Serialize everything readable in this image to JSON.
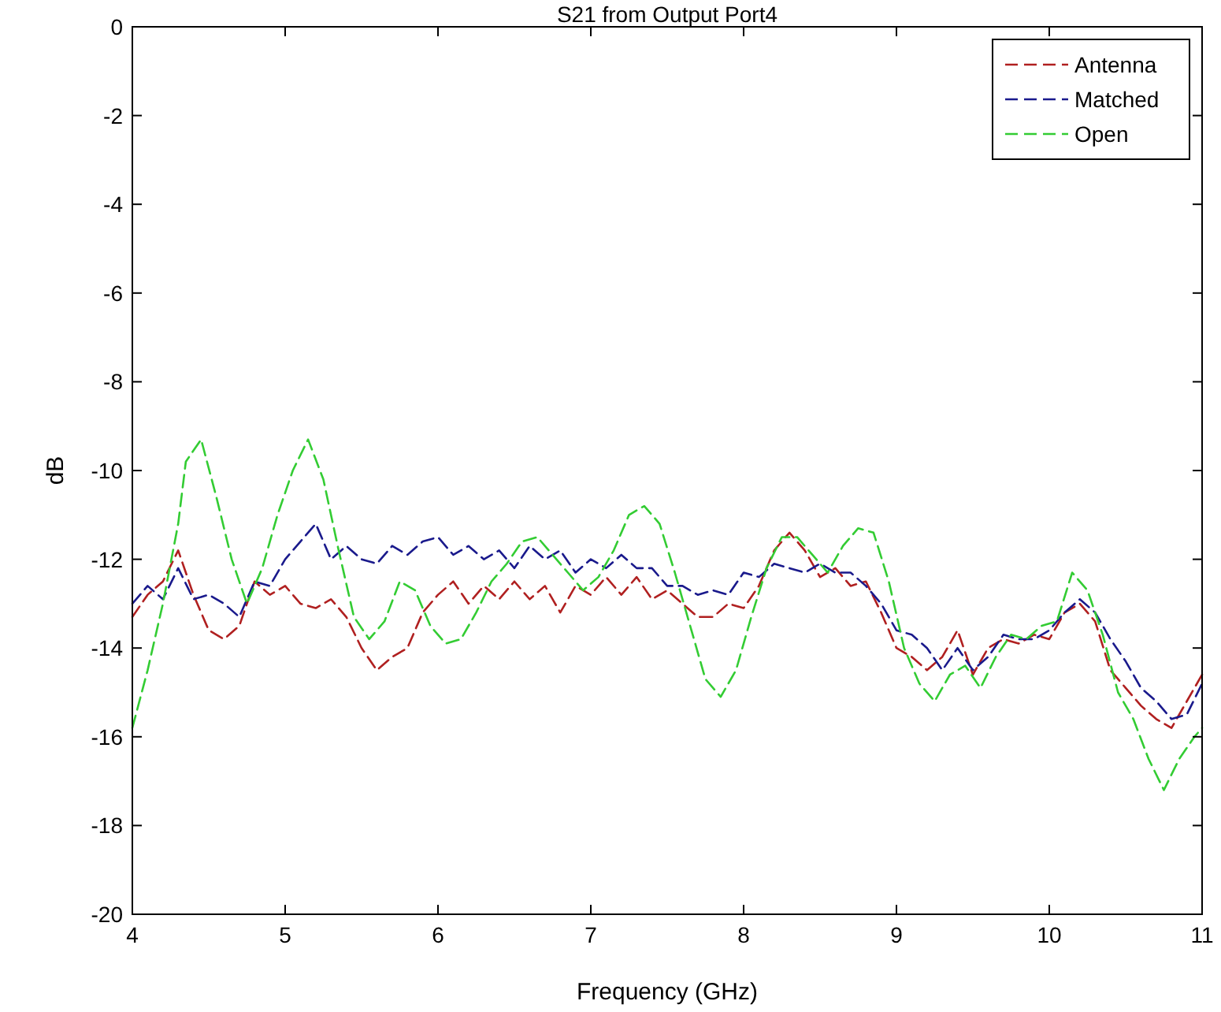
{
  "chart_data": {
    "type": "line",
    "title": "S21 from Output Port4",
    "xlabel": "Frequency (GHz)",
    "ylabel": "dB",
    "xlim": [
      4,
      11
    ],
    "xticks": [
      4,
      5,
      6,
      7,
      8,
      9,
      10,
      11
    ],
    "ylim": [
      -20,
      0
    ],
    "yticks": [
      -20,
      -18,
      -16,
      -14,
      -12,
      -10,
      -8,
      -6,
      -4,
      -2,
      0
    ],
    "grid": false,
    "legend": "top right",
    "line_style": "dashed",
    "series": [
      {
        "name": "Antenna",
        "color": "#b02020",
        "x": [
          4.0,
          4.1,
          4.2,
          4.3,
          4.4,
          4.5,
          4.6,
          4.7,
          4.8,
          4.9,
          5.0,
          5.1,
          5.2,
          5.3,
          5.4,
          5.5,
          5.6,
          5.7,
          5.8,
          5.9,
          6.0,
          6.1,
          6.2,
          6.3,
          6.4,
          6.5,
          6.6,
          6.7,
          6.8,
          6.9,
          7.0,
          7.1,
          7.2,
          7.3,
          7.4,
          7.5,
          7.6,
          7.7,
          7.8,
          7.9,
          8.0,
          8.1,
          8.2,
          8.3,
          8.4,
          8.5,
          8.6,
          8.7,
          8.8,
          8.9,
          9.0,
          9.1,
          9.2,
          9.3,
          9.4,
          9.5,
          9.6,
          9.7,
          9.8,
          9.9,
          10.0,
          10.1,
          10.2,
          10.3,
          10.4,
          10.5,
          10.6,
          10.7,
          10.8,
          10.9,
          11.0
        ],
        "values": [
          -13.3,
          -12.8,
          -12.5,
          -11.8,
          -12.8,
          -13.6,
          -13.8,
          -13.5,
          -12.5,
          -12.8,
          -12.6,
          -13.0,
          -13.1,
          -12.9,
          -13.3,
          -14.0,
          -14.5,
          -14.2,
          -14.0,
          -13.2,
          -12.8,
          -12.5,
          -13.0,
          -12.6,
          -12.9,
          -12.5,
          -12.9,
          -12.6,
          -13.2,
          -12.6,
          -12.8,
          -12.4,
          -12.8,
          -12.4,
          -12.9,
          -12.7,
          -13.0,
          -13.3,
          -13.3,
          -13.0,
          -13.1,
          -12.6,
          -11.8,
          -11.4,
          -11.8,
          -12.4,
          -12.2,
          -12.6,
          -12.5,
          -13.2,
          -14.0,
          -14.2,
          -14.5,
          -14.2,
          -13.6,
          -14.6,
          -14.0,
          -13.8,
          -13.9,
          -13.7,
          -13.8,
          -13.2,
          -13.0,
          -13.4,
          -14.5,
          -14.9,
          -15.3,
          -15.6,
          -15.8,
          -15.2,
          -14.6
        ]
      },
      {
        "name": "Matched",
        "color": "#1a1a8c",
        "x": [
          4.0,
          4.1,
          4.2,
          4.3,
          4.4,
          4.5,
          4.6,
          4.7,
          4.8,
          4.9,
          5.0,
          5.1,
          5.2,
          5.3,
          5.4,
          5.5,
          5.6,
          5.7,
          5.8,
          5.9,
          6.0,
          6.1,
          6.2,
          6.3,
          6.4,
          6.5,
          6.6,
          6.7,
          6.8,
          6.9,
          7.0,
          7.1,
          7.2,
          7.3,
          7.4,
          7.5,
          7.6,
          7.7,
          7.8,
          7.9,
          8.0,
          8.1,
          8.2,
          8.3,
          8.4,
          8.5,
          8.6,
          8.7,
          8.8,
          8.9,
          9.0,
          9.1,
          9.2,
          9.3,
          9.4,
          9.5,
          9.6,
          9.7,
          9.8,
          9.9,
          10.0,
          10.1,
          10.2,
          10.3,
          10.4,
          10.5,
          10.6,
          10.7,
          10.8,
          10.9,
          11.0
        ],
        "values": [
          -13.0,
          -12.6,
          -12.9,
          -12.2,
          -12.9,
          -12.8,
          -13.0,
          -13.3,
          -12.5,
          -12.6,
          -12.0,
          -11.6,
          -11.2,
          -12.0,
          -11.7,
          -12.0,
          -12.1,
          -11.7,
          -11.9,
          -11.6,
          -11.5,
          -11.9,
          -11.7,
          -12.0,
          -11.8,
          -12.2,
          -11.7,
          -12.0,
          -11.8,
          -12.3,
          -12.0,
          -12.2,
          -11.9,
          -12.2,
          -12.2,
          -12.6,
          -12.6,
          -12.8,
          -12.7,
          -12.8,
          -12.3,
          -12.4,
          -12.1,
          -12.2,
          -12.3,
          -12.1,
          -12.3,
          -12.3,
          -12.6,
          -13.0,
          -13.6,
          -13.7,
          -14.0,
          -14.5,
          -14.0,
          -14.5,
          -14.2,
          -13.7,
          -13.8,
          -13.8,
          -13.6,
          -13.2,
          -12.9,
          -13.2,
          -13.8,
          -14.3,
          -14.9,
          -15.2,
          -15.6,
          -15.5,
          -14.8
        ]
      },
      {
        "name": "Open",
        "color": "#33cc33",
        "x": [
          4.0,
          4.1,
          4.2,
          4.3,
          4.35,
          4.45,
          4.55,
          4.65,
          4.75,
          4.85,
          4.95,
          5.05,
          5.15,
          5.25,
          5.35,
          5.45,
          5.55,
          5.65,
          5.75,
          5.85,
          5.95,
          6.05,
          6.15,
          6.25,
          6.35,
          6.45,
          6.55,
          6.65,
          6.75,
          6.85,
          6.95,
          7.05,
          7.15,
          7.25,
          7.35,
          7.45,
          7.55,
          7.65,
          7.75,
          7.85,
          7.95,
          8.05,
          8.15,
          8.25,
          8.35,
          8.45,
          8.55,
          8.65,
          8.75,
          8.85,
          8.95,
          9.05,
          9.15,
          9.25,
          9.35,
          9.45,
          9.55,
          9.65,
          9.75,
          9.85,
          9.95,
          10.05,
          10.15,
          10.25,
          10.35,
          10.45,
          10.55,
          10.65,
          10.75,
          10.85,
          10.95,
          11.0
        ],
        "values": [
          -15.8,
          -14.5,
          -13.0,
          -11.2,
          -9.8,
          -9.3,
          -10.6,
          -12.0,
          -13.0,
          -12.2,
          -11.0,
          -10.0,
          -9.3,
          -10.2,
          -11.8,
          -13.3,
          -13.8,
          -13.4,
          -12.5,
          -12.7,
          -13.5,
          -13.9,
          -13.8,
          -13.2,
          -12.5,
          -12.1,
          -11.6,
          -11.5,
          -11.9,
          -12.3,
          -12.7,
          -12.4,
          -11.8,
          -11.0,
          -10.8,
          -11.2,
          -12.3,
          -13.5,
          -14.7,
          -15.1,
          -14.5,
          -13.3,
          -12.2,
          -11.5,
          -11.5,
          -11.9,
          -12.3,
          -11.7,
          -11.3,
          -11.4,
          -12.5,
          -14.0,
          -14.8,
          -15.2,
          -14.6,
          -14.4,
          -14.9,
          -14.2,
          -13.7,
          -13.8,
          -13.5,
          -13.4,
          -12.3,
          -12.7,
          -13.7,
          -15.0,
          -15.6,
          -16.5,
          -17.2,
          -16.5,
          -16.0,
          -15.8
        ]
      }
    ]
  }
}
